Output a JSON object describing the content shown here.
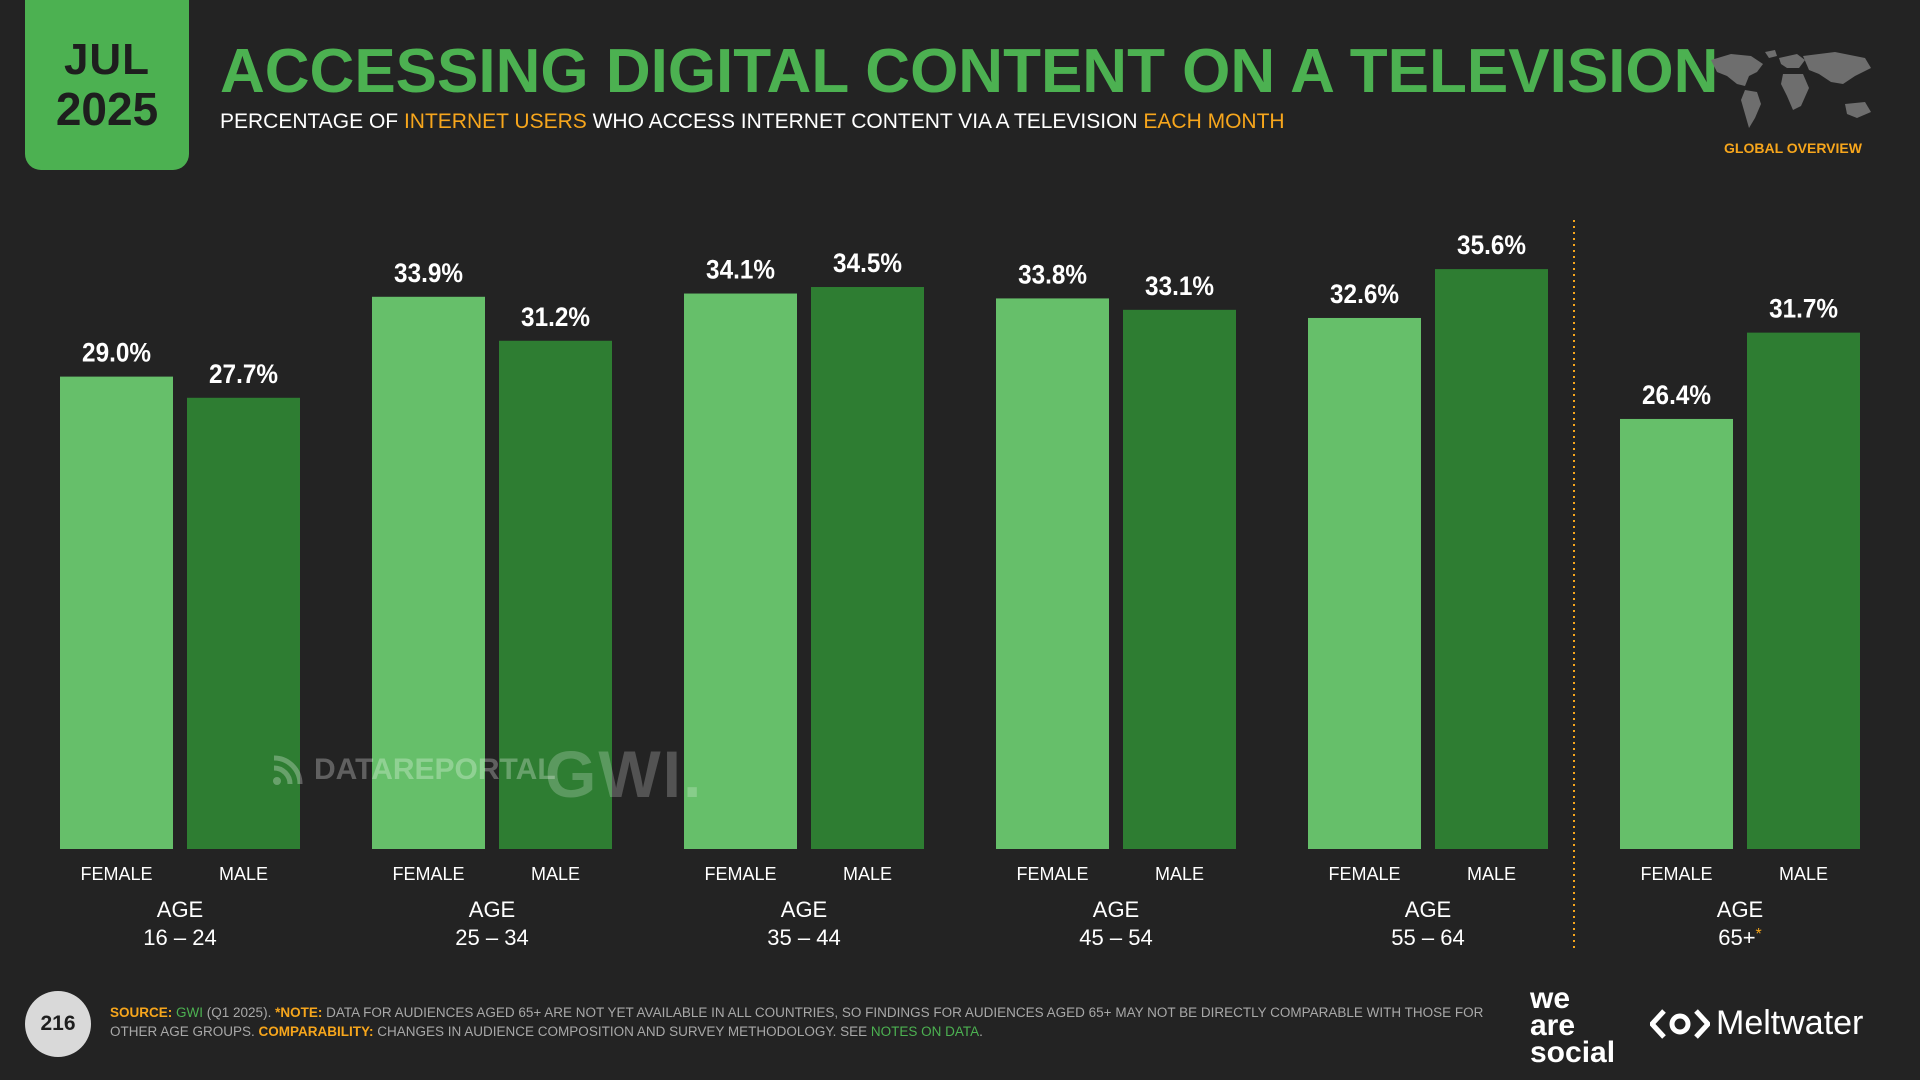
{
  "badge": {
    "month": "JUL",
    "year": "2025"
  },
  "title": "ACCESSING DIGITAL CONTENT ON A TELEVISION",
  "subtitle": {
    "part1": "PERCENTAGE OF ",
    "highlight1": "INTERNET USERS",
    "part2": " WHO ACCESS INTERNET CONTENT VIA A TELEVISION ",
    "highlight2": "EACH MONTH"
  },
  "section_label": "GLOBAL OVERVIEW",
  "icons": {
    "map": "world-map-icon"
  },
  "watermarks": {
    "datareportal": "DATAREPORTAL",
    "gwi": "GWI."
  },
  "colors": {
    "background": "#232323",
    "title_green": "#4cb151",
    "female_bar": "#66bf6a",
    "male_bar": "#2e7d32",
    "accent_orange": "#f7a61c",
    "separator": "#f7a61c"
  },
  "chart_data": {
    "type": "bar",
    "groups": [
      {
        "age_label": "AGE",
        "age_range": "16 – 24"
      },
      {
        "age_label": "AGE",
        "age_range": "25 – 34"
      },
      {
        "age_label": "AGE",
        "age_range": "35 – 44"
      },
      {
        "age_label": "AGE",
        "age_range": "45 – 54"
      },
      {
        "age_label": "AGE",
        "age_range": "55 – 64"
      },
      {
        "age_label": "AGE",
        "age_range": "65+",
        "note_marker": "*"
      }
    ],
    "series": [
      {
        "name": "FEMALE",
        "values": [
          29.0,
          33.9,
          34.1,
          33.8,
          32.6,
          26.4
        ],
        "labels": [
          "29.0%",
          "33.9%",
          "34.1%",
          "33.8%",
          "32.6%",
          "26.4%"
        ]
      },
      {
        "name": "MALE",
        "values": [
          27.7,
          31.2,
          34.5,
          33.1,
          35.6,
          31.7
        ],
        "labels": [
          "27.7%",
          "31.2%",
          "34.5%",
          "33.1%",
          "35.6%",
          "31.7%"
        ]
      }
    ],
    "ylim": [
      0,
      38
    ],
    "unit": "%",
    "separator_before_group": 5
  },
  "footer": {
    "page_number": "216",
    "source_key": "SOURCE:",
    "source_link": "GWI",
    "source_text": " (Q1 2025). ",
    "note_key": "*NOTE:",
    "note_text": " DATA FOR AUDIENCES AGED 65+ ARE NOT YET AVAILABLE IN ALL COUNTRIES, SO FINDINGS FOR AUDIENCES AGED 65+ MAY NOT BE DIRECTLY COMPARABLE WITH THOSE FOR OTHER AGE GROUPS. ",
    "comp_key": "COMPARABILITY:",
    "comp_text": " CHANGES IN AUDIENCE COMPOSITION AND SURVEY METHODOLOGY. SEE ",
    "notes_link": "NOTES ON DATA",
    "end": "."
  },
  "logos": {
    "we_are_social": [
      "we",
      "are",
      "social"
    ],
    "meltwater": "Meltwater"
  }
}
